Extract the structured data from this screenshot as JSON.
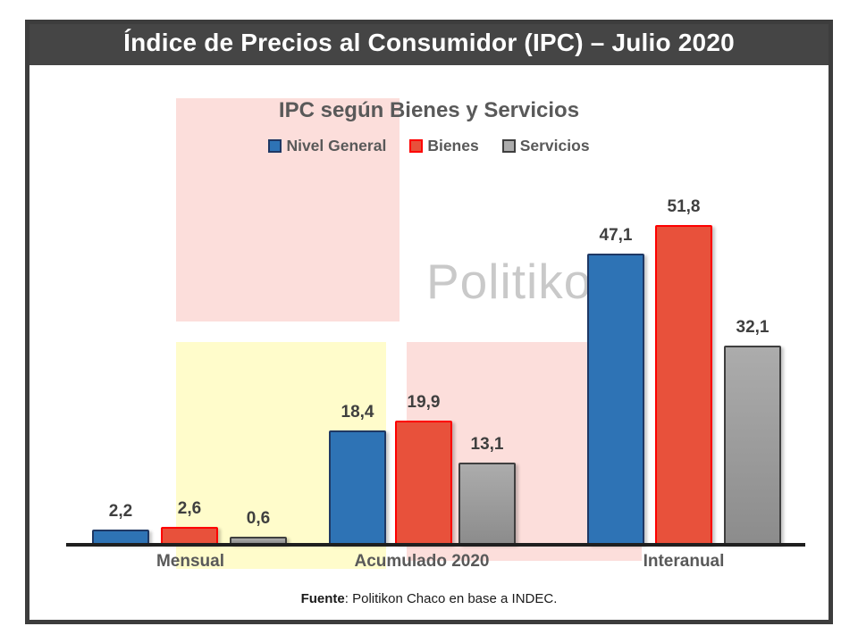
{
  "window": {
    "title": "Índice de Precios al Consumidor (IPC) – Julio 2020"
  },
  "chart_data": {
    "type": "bar",
    "title": "IPC según Bienes y Servicios",
    "categories": [
      "Mensual",
      "Acumulado 2020",
      "Interanual"
    ],
    "series": [
      {
        "name": "Nivel General",
        "values": [
          2.2,
          18.4,
          47.1
        ],
        "labels": [
          "2,2",
          "18,4",
          "47,1"
        ],
        "fill": "#2e73b5",
        "border": "#1f3864"
      },
      {
        "name": "Bienes",
        "values": [
          2.6,
          19.9,
          51.8
        ],
        "labels": [
          "2,6",
          "19,9",
          "51,8"
        ],
        "fill": "#e8513b",
        "border": "#fe0000"
      },
      {
        "name": "Servicios",
        "values": [
          0.6,
          13.1,
          32.1
        ],
        "labels": [
          "0,6",
          "13,1",
          "32,1"
        ],
        "fill": "#acacac",
        "fill2": "#8c8c8c",
        "border": "#3f3f3f"
      }
    ],
    "xlabel": "",
    "ylabel": "",
    "ylim": [
      0,
      55
    ],
    "grid": false,
    "legend_position": "top",
    "value_format": "comma-decimal",
    "annotations": [
      "Politikon watermark behind bars"
    ]
  },
  "watermark": {
    "text": "Politikon"
  },
  "footer": {
    "bold_label": "Fuente",
    "rest": ": Politikon Chaco en base a INDEC."
  },
  "colors": {
    "titlebar_bg": "#454545",
    "frame_border": "#3d3d3d",
    "bg_pink": "#fcdedb",
    "bg_yellow": "#fffccb",
    "watermark_gray": "#c9c9c9",
    "axis_black": "#1f1f1f",
    "heading_gray": "#595959"
  }
}
